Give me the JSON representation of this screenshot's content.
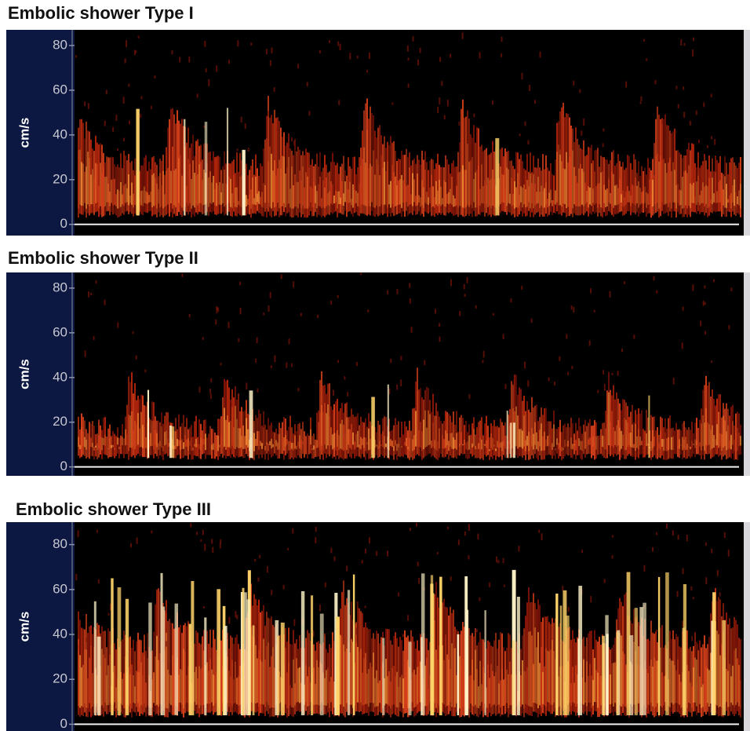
{
  "chart_data": [
    {
      "type": "spectrogram",
      "title": "Embolic shower Type I",
      "y_label": "cm/s",
      "ylim": [
        -5,
        87
      ],
      "yticks": [
        0,
        20,
        40,
        60,
        80
      ]
    },
    {
      "type": "spectrogram",
      "title": "Embolic shower Type II",
      "y_label": "cm/s",
      "ylim": [
        -4,
        87
      ],
      "yticks": [
        0,
        20,
        40,
        60,
        80
      ]
    },
    {
      "type": "spectrogram",
      "title": "Embolic shower Type III",
      "y_label": "cm/s",
      "ylim": [
        -3,
        90
      ],
      "yticks": [
        0,
        20,
        40,
        60,
        80
      ]
    }
  ]
}
